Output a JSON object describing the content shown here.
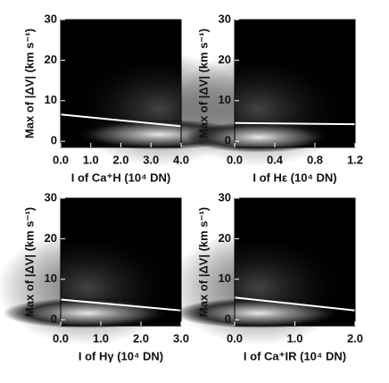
{
  "chart_data": [
    {
      "type": "line",
      "x_label": "I of Ca⁺H (10⁴ DN)",
      "y_label": "Max of |ΔV| (km s⁻¹)",
      "x": [
        0,
        4.0
      ],
      "values": [
        6.6,
        3.7
      ],
      "color": "#ffffff",
      "background": "#000000",
      "xlim": [
        0,
        4.0
      ],
      "xticks": [
        {
          "value": 0,
          "label": "0.0"
        },
        {
          "value": 1,
          "label": "1.0"
        },
        {
          "value": 2,
          "label": "2.0"
        },
        {
          "value": 3,
          "label": "3.0"
        },
        {
          "value": 4,
          "label": "4.0"
        }
      ],
      "ylim": [
        -1.5,
        30
      ],
      "yticks": [
        0,
        10,
        20,
        30
      ]
    },
    {
      "type": "line",
      "x_label": "I of Hε (10⁴ DN)",
      "y_label": "Max of |ΔV| (km s⁻¹)",
      "x": [
        0,
        1.2
      ],
      "values": [
        4.5,
        4.2
      ],
      "color": "#ffffff",
      "background": "#000000",
      "xlim": [
        0,
        1.2
      ],
      "xticks": [
        {
          "value": 0,
          "label": "0.0"
        },
        0.4,
        0.8,
        1.2
      ],
      "ylim": [
        -1.5,
        30
      ],
      "yticks": [
        0,
        10,
        20,
        30
      ]
    },
    {
      "type": "line",
      "x_label": "I of Hγ (10⁴ DN)",
      "y_label": "Max of |ΔV| (km s⁻¹)",
      "x": [
        0,
        3.0
      ],
      "values": [
        5.0,
        2.3
      ],
      "color": "#ffffff",
      "background": "#000000",
      "xlim": [
        0,
        3.0
      ],
      "xticks": [
        {
          "value": 0,
          "label": "0.0"
        },
        {
          "value": 1,
          "label": "1.0"
        },
        {
          "value": 2,
          "label": "2.0"
        },
        {
          "value": 3,
          "label": "3.0"
        }
      ],
      "ylim": [
        -1.5,
        30
      ],
      "yticks": [
        0,
        10,
        20,
        30
      ]
    },
    {
      "type": "line",
      "x_label": "I of Ca⁺IR (10⁴ DN)",
      "y_label": "Max of |ΔV| (km s⁻¹)",
      "x": [
        0,
        2.0
      ],
      "values": [
        5.5,
        2.3
      ],
      "color": "#ffffff",
      "background": "#000000",
      "xlim": [
        0,
        2.0
      ],
      "xticks": [
        {
          "value": 0,
          "label": "0.0"
        },
        {
          "value": 1,
          "label": "1.0"
        },
        {
          "value": 2,
          "label": "2.0"
        }
      ],
      "ylim": [
        -1.5,
        30
      ],
      "yticks": [
        0,
        10,
        20,
        30
      ]
    }
  ]
}
